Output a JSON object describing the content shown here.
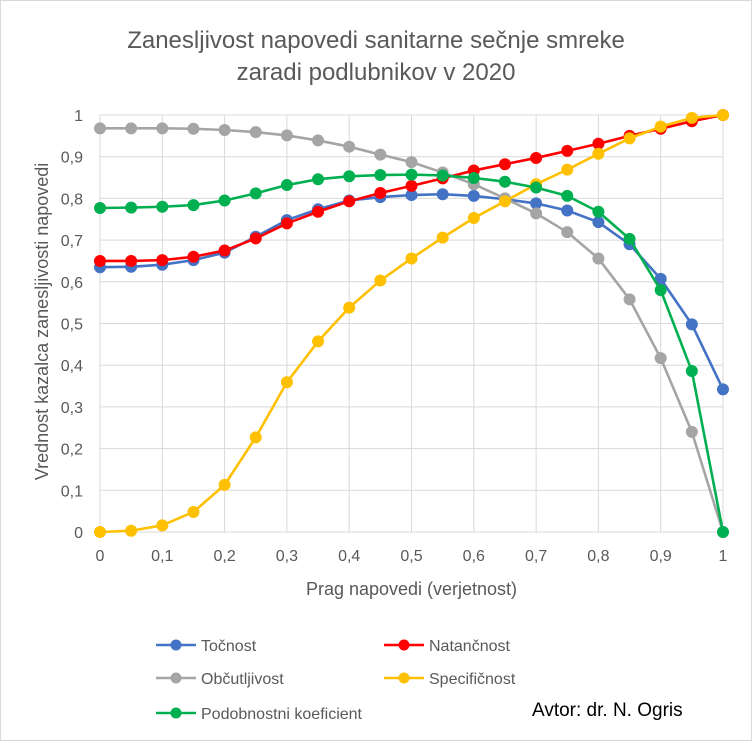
{
  "chart_data": {
    "type": "line",
    "title": "Zanesljivost napovedi sanitarne sečnje smreke zaradi podlubnikov v 2020",
    "title_lines": [
      "Zanesljivost napovedi sanitarne sečnje smreke",
      "zaradi podlubnikov v 2020"
    ],
    "xlabel": "Prag napovedi (verjetnost)",
    "ylabel": "Vrednost kazalca zanesljivosti napovedi",
    "xlim": [
      0,
      1
    ],
    "ylim": [
      0,
      1
    ],
    "xticks": [
      "0",
      "0,1",
      "0,2",
      "0,3",
      "0,4",
      "0,5",
      "0,6",
      "0,7",
      "0,8",
      "0,9",
      "1"
    ],
    "yticks": [
      "0",
      "0,1",
      "0,2",
      "0,3",
      "0,4",
      "0,5",
      "0,6",
      "0,7",
      "0,8",
      "0,9",
      "1"
    ],
    "grid": true,
    "legend_position": "bottom",
    "x": [
      0,
      0.05,
      0.1,
      0.15,
      0.2,
      0.25,
      0.3,
      0.35,
      0.4,
      0.45,
      0.5,
      0.55,
      0.6,
      0.65,
      0.7,
      0.75,
      0.8,
      0.85,
      0.9,
      0.95,
      1
    ],
    "series": [
      {
        "name": "Točnost",
        "color": "#4472c4",
        "values": [
          0.635,
          0.636,
          0.641,
          0.652,
          0.67,
          0.708,
          0.748,
          0.774,
          0.795,
          0.803,
          0.808,
          0.81,
          0.806,
          0.798,
          0.788,
          0.771,
          0.743,
          0.69,
          0.607,
          0.498,
          0.342
        ]
      },
      {
        "name": "Natančnost",
        "color": "#ff0000",
        "values": [
          0.65,
          0.65,
          0.652,
          0.66,
          0.675,
          0.704,
          0.74,
          0.768,
          0.793,
          0.813,
          0.83,
          0.848,
          0.867,
          0.882,
          0.897,
          0.914,
          0.931,
          0.95,
          0.967,
          0.985,
          1.0
        ]
      },
      {
        "name": "Občutljivost",
        "color": "#a5a5a5",
        "values": [
          0.968,
          0.968,
          0.968,
          0.967,
          0.964,
          0.959,
          0.951,
          0.939,
          0.924,
          0.905,
          0.887,
          0.862,
          0.834,
          0.8,
          0.764,
          0.719,
          0.656,
          0.558,
          0.417,
          0.24,
          0.0
        ]
      },
      {
        "name": "Specifičnost",
        "color": "#ffc000",
        "values": [
          0.0,
          0.003,
          0.016,
          0.048,
          0.113,
          0.227,
          0.359,
          0.457,
          0.538,
          0.603,
          0.656,
          0.706,
          0.753,
          0.793,
          0.834,
          0.869,
          0.907,
          0.944,
          0.972,
          0.993,
          1.0
        ]
      },
      {
        "name": "Podobnostni koeficient",
        "color": "#00b050",
        "values": [
          0.777,
          0.778,
          0.78,
          0.784,
          0.795,
          0.812,
          0.832,
          0.846,
          0.853,
          0.856,
          0.857,
          0.855,
          0.849,
          0.84,
          0.826,
          0.806,
          0.768,
          0.703,
          0.58,
          0.386,
          0.0
        ]
      }
    ]
  },
  "author_label": "Avtor: dr. N. Ogris"
}
